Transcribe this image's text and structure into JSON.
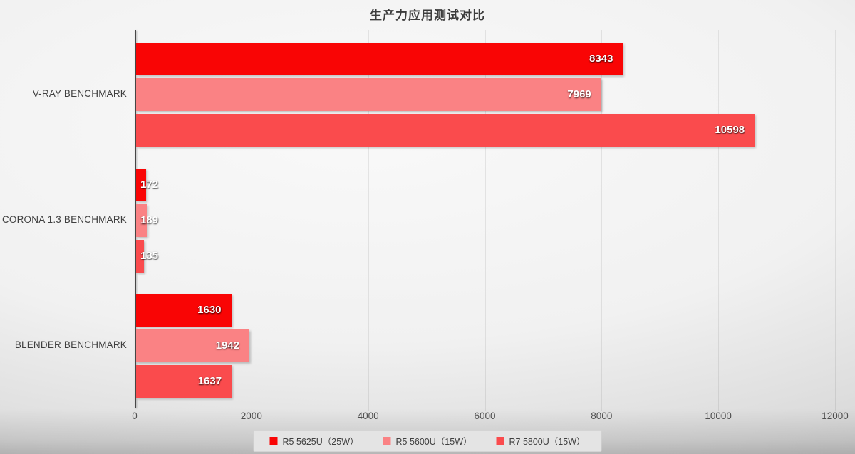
{
  "title": "生产力应用测试对比",
  "chart_data": {
    "type": "bar",
    "orientation": "horizontal",
    "title": "生产力应用测试对比",
    "categories": [
      "V-RAY BENCHMARK",
      "CORONA 1.3 BENCHMARK",
      "BLENDER BENCHMARK"
    ],
    "series": [
      {
        "name": "R5 5625U（25W）",
        "color": "#f90505",
        "values": [
          8343,
          172,
          1630
        ]
      },
      {
        "name": "R5 5600U（15W）",
        "color": "#fa8284",
        "values": [
          7969,
          189,
          1942
        ]
      },
      {
        "name": "R7 5800U（15W）",
        "color": "#fa4b4d",
        "values": [
          10598,
          135,
          1637
        ]
      }
    ],
    "xlabel": "",
    "ylabel": "",
    "xlim": [
      0,
      12000
    ],
    "x_ticks": [
      "0",
      "2000",
      "4000",
      "6000",
      "8000",
      "10000",
      "12000"
    ],
    "x_tick_values": [
      0,
      2000,
      4000,
      6000,
      8000,
      10000,
      12000
    ],
    "grid": "vertical-major-gridlines",
    "legend_position": "bottom",
    "value_labels": "inside-end-white-bold"
  }
}
